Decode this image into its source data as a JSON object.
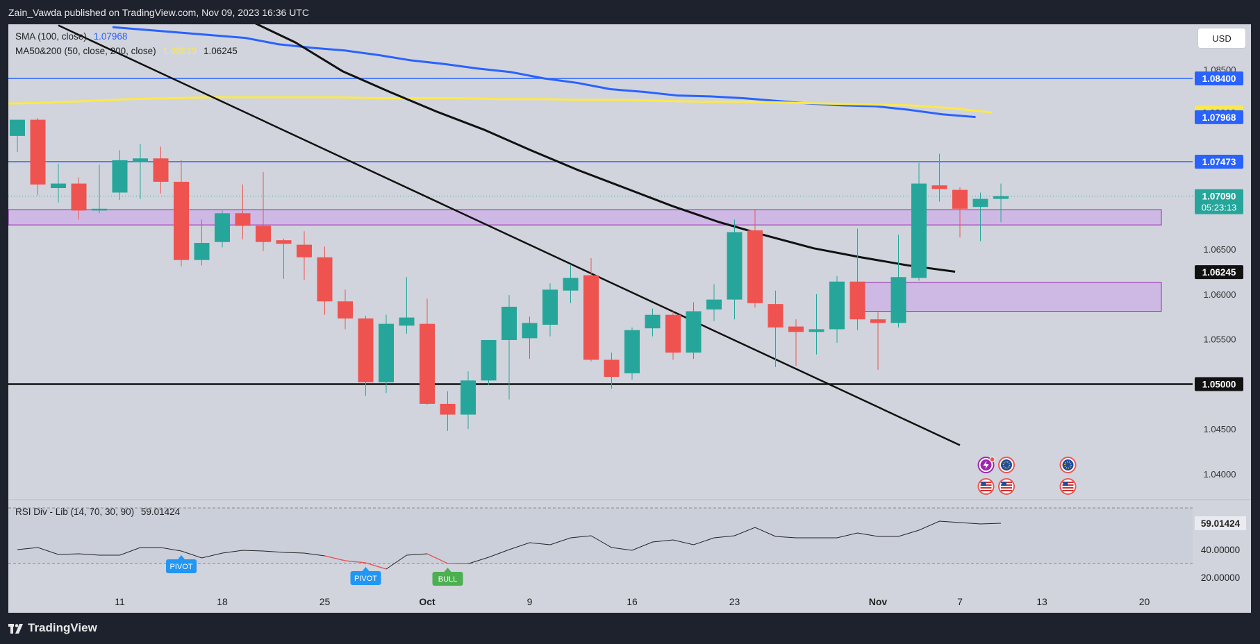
{
  "header": {
    "publisher_line": "Zain_Vawda published on TradingView.com, Nov 09, 2023 16:36 UTC"
  },
  "footer": {
    "brand": "TradingView"
  },
  "currency_button": "USD",
  "legends": {
    "sma": {
      "label": "SMA (100, close)",
      "value": "1.07968",
      "color": "#2962ff"
    },
    "ma": {
      "label": "MA50&200 (50, close, 200, close)",
      "value_50": "1.08019",
      "value_200": "1.06245",
      "color_50": "#fbe94a",
      "color_200": "#111111"
    },
    "rsi": {
      "label": "RSI Div - Lib (14, 70, 30, 90)",
      "value": "59.01424"
    }
  },
  "colors": {
    "bull": "#26a69a",
    "bear": "#ef5350",
    "sma100": "#2962ff",
    "ma50": "#fbe94a",
    "ma200": "#111111",
    "hline": "#2962ff",
    "zone": "#c9a6ea",
    "zone_border": "#9c27b0",
    "background": "#d1d4dc",
    "frame": "#1e222d"
  },
  "price_scale": {
    "min": 1.035,
    "max": 1.0895,
    "ticks": [
      "1.04000",
      "1.04500",
      "1.05000",
      "1.05500",
      "1.06000",
      "1.06500",
      "1.08500"
    ],
    "tick_values": [
      1.04,
      1.045,
      1.05,
      1.055,
      1.06,
      1.065,
      1.085
    ]
  },
  "price_labels": [
    {
      "text": "1.08400",
      "value": 1.084,
      "bg": "#2962ff",
      "fg": "#ffffff"
    },
    {
      "text": "1.08019",
      "value": 1.08019,
      "bg": "#fbe94a",
      "fg": "#111111"
    },
    {
      "text": "1.07968",
      "value": 1.07968,
      "bg": "#2962ff",
      "fg": "#ffffff"
    },
    {
      "text": "1.07473",
      "value": 1.07473,
      "bg": "#2962ff",
      "fg": "#ffffff"
    },
    {
      "text": "1.07090",
      "value": 1.0709,
      "bg": "#26a69a",
      "fg": "#ffffff",
      "sub": "05:23:13"
    },
    {
      "text": "1.06245",
      "value": 1.06245,
      "bg": "#111111",
      "fg": "#ffffff"
    },
    {
      "text": "1.05000",
      "value": 1.05,
      "bg": "#111111",
      "fg": "#ffffff"
    }
  ],
  "horizontal_lines": [
    {
      "value": 1.084,
      "color": "#2962ff"
    },
    {
      "value": 1.07473,
      "color": "#2962ff"
    },
    {
      "value": 1.05,
      "color": "#111111"
    }
  ],
  "zones": [
    {
      "from_index": 0,
      "to_index": 56,
      "top": 1.0694,
      "bottom": 1.0677
    },
    {
      "from_index": 41,
      "to_index": 56,
      "top": 1.0613,
      "bottom": 1.0581
    }
  ],
  "time_axis": {
    "labels": [
      {
        "text": "11",
        "index": 5
      },
      {
        "text": "18",
        "index": 10
      },
      {
        "text": "25",
        "index": 15
      },
      {
        "text": "Oct",
        "index": 20,
        "bold": true
      },
      {
        "text": "9",
        "index": 25
      },
      {
        "text": "16",
        "index": 30
      },
      {
        "text": "23",
        "index": 35
      },
      {
        "text": "Nov",
        "index": 42,
        "bold": true
      },
      {
        "text": "7",
        "index": 46
      },
      {
        "text": "13",
        "index": 50
      },
      {
        "text": "20",
        "index": 55
      }
    ]
  },
  "chart_data": {
    "type": "candlestick",
    "title": "",
    "y_range": [
      1.035,
      1.0895
    ],
    "candles": [
      {
        "o": 1.0776,
        "h": 1.079,
        "l": 1.0758,
        "c": 1.0794
      },
      {
        "o": 1.0794,
        "h": 1.0796,
        "l": 1.071,
        "c": 1.0722
      },
      {
        "o": 1.0718,
        "h": 1.0745,
        "l": 1.0702,
        "c": 1.0723
      },
      {
        "o": 1.0723,
        "h": 1.073,
        "l": 1.0683,
        "c": 1.0693
      },
      {
        "o": 1.0693,
        "h": 1.0744,
        "l": 1.069,
        "c": 1.0695
      },
      {
        "o": 1.0713,
        "h": 1.076,
        "l": 1.0705,
        "c": 1.0749
      },
      {
        "o": 1.0747,
        "h": 1.0767,
        "l": 1.0706,
        "c": 1.0751
      },
      {
        "o": 1.0751,
        "h": 1.0764,
        "l": 1.0712,
        "c": 1.0725
      },
      {
        "o": 1.0725,
        "h": 1.0749,
        "l": 1.0631,
        "c": 1.0638
      },
      {
        "o": 1.0638,
        "h": 1.0683,
        "l": 1.0632,
        "c": 1.0657
      },
      {
        "o": 1.0658,
        "h": 1.0693,
        "l": 1.0652,
        "c": 1.069
      },
      {
        "o": 1.069,
        "h": 1.0722,
        "l": 1.0661,
        "c": 1.0676
      },
      {
        "o": 1.0676,
        "h": 1.0736,
        "l": 1.0648,
        "c": 1.0658
      },
      {
        "o": 1.066,
        "h": 1.0662,
        "l": 1.0617,
        "c": 1.0656
      },
      {
        "o": 1.0655,
        "h": 1.067,
        "l": 1.0616,
        "c": 1.0641
      },
      {
        "o": 1.0641,
        "h": 1.0653,
        "l": 1.0577,
        "c": 1.0592
      },
      {
        "o": 1.0592,
        "h": 1.0605,
        "l": 1.0561,
        "c": 1.0573
      },
      {
        "o": 1.0573,
        "h": 1.0576,
        "l": 1.0487,
        "c": 1.0502
      },
      {
        "o": 1.0502,
        "h": 1.0577,
        "l": 1.049,
        "c": 1.0567
      },
      {
        "o": 1.0565,
        "h": 1.0619,
        "l": 1.0556,
        "c": 1.0574
      },
      {
        "o": 1.0567,
        "h": 1.0595,
        "l": 1.0477,
        "c": 1.0478
      },
      {
        "o": 1.0478,
        "h": 1.0492,
        "l": 1.0448,
        "c": 1.0466
      },
      {
        "o": 1.0466,
        "h": 1.0514,
        "l": 1.045,
        "c": 1.0504
      },
      {
        "o": 1.0504,
        "h": 1.0549,
        "l": 1.0499,
        "c": 1.0549
      },
      {
        "o": 1.0549,
        "h": 1.0599,
        "l": 1.0483,
        "c": 1.0586
      },
      {
        "o": 1.0551,
        "h": 1.0575,
        "l": 1.0528,
        "c": 1.0568
      },
      {
        "o": 1.0566,
        "h": 1.0612,
        "l": 1.0553,
        "c": 1.0605
      },
      {
        "o": 1.0604,
        "h": 1.0633,
        "l": 1.059,
        "c": 1.0618
      },
      {
        "o": 1.0621,
        "h": 1.064,
        "l": 1.0525,
        "c": 1.0527
      },
      {
        "o": 1.0527,
        "h": 1.0535,
        "l": 1.0495,
        "c": 1.0508
      },
      {
        "o": 1.0512,
        "h": 1.0563,
        "l": 1.0505,
        "c": 1.056
      },
      {
        "o": 1.0562,
        "h": 1.0584,
        "l": 1.0553,
        "c": 1.0577
      },
      {
        "o": 1.0577,
        "h": 1.0581,
        "l": 1.0527,
        "c": 1.0535
      },
      {
        "o": 1.0535,
        "h": 1.0591,
        "l": 1.0528,
        "c": 1.0581
      },
      {
        "o": 1.0583,
        "h": 1.0611,
        "l": 1.057,
        "c": 1.0594
      },
      {
        "o": 1.0594,
        "h": 1.0683,
        "l": 1.0572,
        "c": 1.0669
      },
      {
        "o": 1.0671,
        "h": 1.0694,
        "l": 1.0585,
        "c": 1.059
      },
      {
        "o": 1.0589,
        "h": 1.0604,
        "l": 1.0519,
        "c": 1.0563
      },
      {
        "o": 1.0564,
        "h": 1.0572,
        "l": 1.052,
        "c": 1.0558
      },
      {
        "o": 1.0558,
        "h": 1.06,
        "l": 1.0533,
        "c": 1.0561
      },
      {
        "o": 1.0561,
        "h": 1.062,
        "l": 1.0546,
        "c": 1.0614
      },
      {
        "o": 1.0614,
        "h": 1.0673,
        "l": 1.056,
        "c": 1.0572
      },
      {
        "o": 1.0572,
        "h": 1.058,
        "l": 1.0516,
        "c": 1.0568
      },
      {
        "o": 1.0568,
        "h": 1.0666,
        "l": 1.0563,
        "c": 1.0619
      },
      {
        "o": 1.0618,
        "h": 1.0746,
        "l": 1.0615,
        "c": 1.0723
      },
      {
        "o": 1.0721,
        "h": 1.0756,
        "l": 1.0703,
        "c": 1.0717
      },
      {
        "o": 1.0716,
        "h": 1.0719,
        "l": 1.0663,
        "c": 1.0695
      },
      {
        "o": 1.0697,
        "h": 1.0713,
        "l": 1.0659,
        "c": 1.0706
      },
      {
        "o": 1.0706,
        "h": 1.0723,
        "l": 1.068,
        "c": 1.0709
      }
    ],
    "sma100": [
      1.0897,
      1.0894,
      1.0891,
      1.0888,
      1.0885,
      1.0878,
      1.0874,
      1.0871,
      1.0866,
      1.086,
      1.0856,
      1.0851,
      1.0847,
      1.084,
      1.0835,
      1.0828,
      1.0825,
      1.0821,
      1.082,
      1.0818,
      1.0815,
      1.0812,
      1.081,
      1.0809,
      1.0805,
      1.08,
      1.0797
    ],
    "sma100_from_index": 6,
    "sma100_step": 1.62,
    "ma50": [
      1.0812,
      1.0813,
      1.0815,
      1.0817,
      1.0818,
      1.0819,
      1.0819,
      1.0819,
      1.0819,
      1.0818,
      1.0818,
      1.0818,
      1.0817,
      1.0817,
      1.0816,
      1.0816,
      1.0815,
      1.0814,
      1.0814,
      1.0813,
      1.0812,
      1.0811,
      1.081,
      1.0807,
      1.0802
    ],
    "ma200": [
      1.0925,
      1.0905,
      1.088,
      1.0848,
      1.0825,
      1.0803,
      1.0783,
      1.076,
      1.0738,
      1.0718,
      1.0698,
      1.068,
      1.0665,
      1.0651,
      1.0641,
      1.0632,
      1.0625
    ],
    "ma200_from_index": 11,
    "ma200_step": 2.3,
    "trendline": {
      "from": {
        "index": 2,
        "value": 1.0899
      },
      "to": {
        "index": 46,
        "value": 1.0432
      }
    },
    "rsi": {
      "range": [
        15,
        75
      ],
      "levels": [
        30,
        70
      ],
      "values": [
        40,
        41.5,
        36.5,
        37,
        36,
        36,
        41.5,
        41.5,
        39,
        34,
        37.5,
        39.5,
        39,
        38,
        37.5,
        35.5,
        32,
        30.5,
        26,
        36,
        37,
        30,
        29.8,
        34.5,
        40,
        45,
        43.5,
        48.5,
        50,
        41.5,
        39.5,
        45.5,
        47,
        43.5,
        48.5,
        50,
        56,
        49.5,
        48.5,
        48.5,
        48.5,
        52,
        49.5,
        49.5,
        54,
        60.5,
        59.5,
        58.5,
        59
      ],
      "weak_segments": [
        [
          15,
          18
        ],
        [
          20,
          22
        ]
      ],
      "badges": [
        {
          "text": "PIVOT",
          "index": 8,
          "color": "#2196f3"
        },
        {
          "text": "PIVOT",
          "index": 17,
          "color": "#2196f3"
        },
        {
          "text": "BULL",
          "index": 21,
          "color": "#4caf50"
        }
      ],
      "axis_labels": [
        {
          "text": "59.01424",
          "value": 59.01424,
          "highlight": true
        },
        {
          "text": "40.00000",
          "value": 40
        },
        {
          "text": "20.00000",
          "value": 20
        }
      ]
    }
  },
  "event_icons": [
    {
      "type": "lightning",
      "name": "lightning-event-icon",
      "row": 0,
      "index": 47
    },
    {
      "type": "eu-flag",
      "name": "eu-event-icon",
      "row": 0,
      "index": 48
    },
    {
      "type": "eu-flag",
      "name": "eu-event-icon",
      "row": 0,
      "index": 51
    },
    {
      "type": "us-flag",
      "name": "us-event-icon",
      "row": 1,
      "index": 47
    },
    {
      "type": "us-flag",
      "name": "us-event-icon",
      "row": 1,
      "index": 48
    },
    {
      "type": "us-flag",
      "name": "us-event-icon",
      "row": 1,
      "index": 51
    }
  ]
}
